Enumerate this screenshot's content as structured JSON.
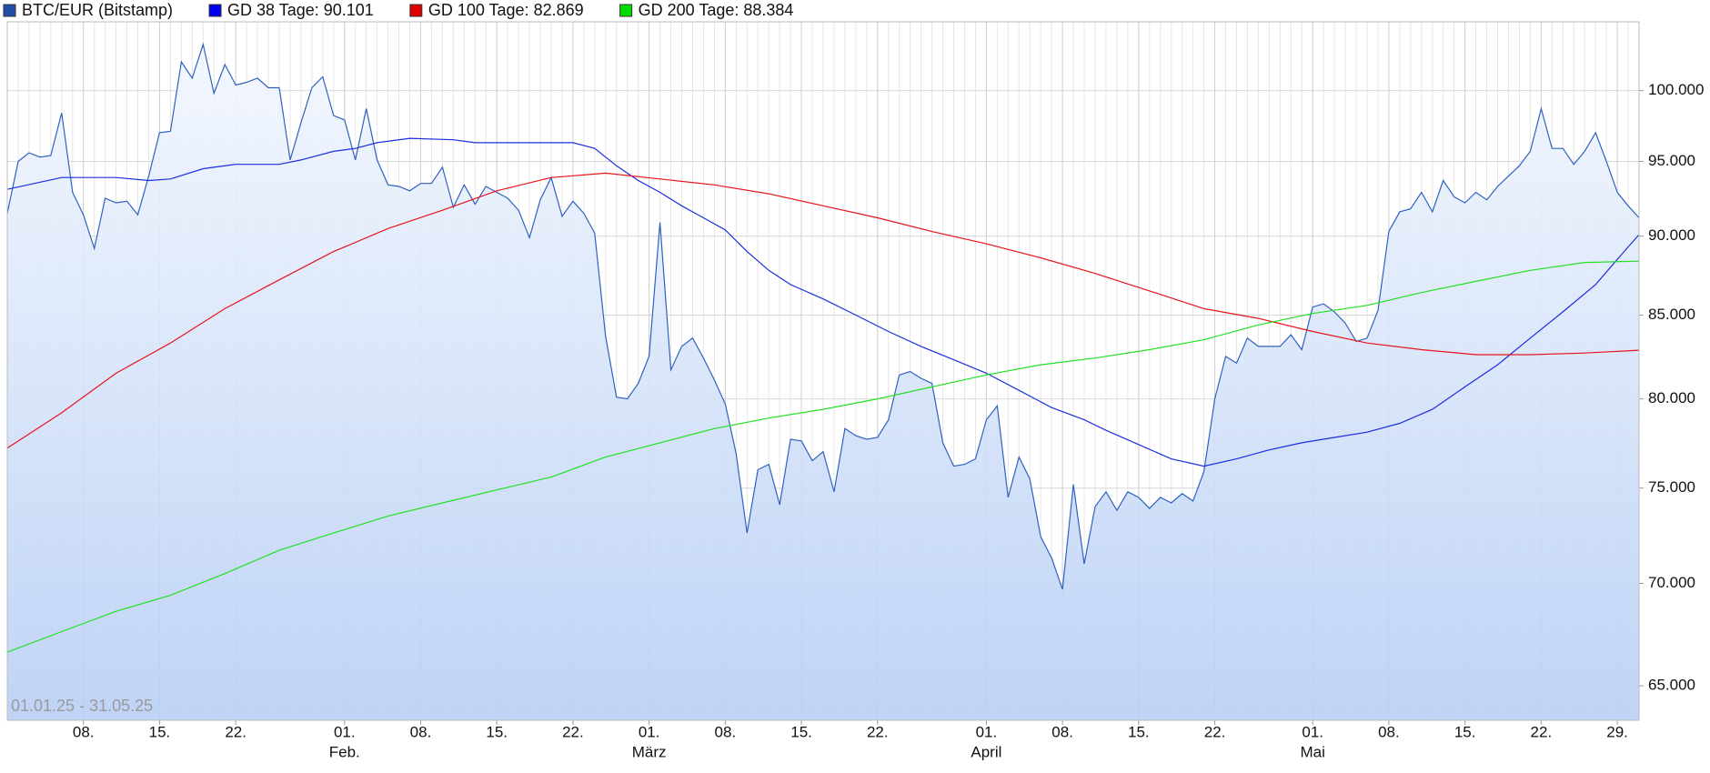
{
  "chart_data": {
    "type": "line",
    "log_scale": true,
    "grid": true,
    "subtitle": "01.01.25 - 31.05.25",
    "xlim": [
      "2025-01-01",
      "2025-05-31"
    ],
    "ylim": [
      63400,
      105100
    ],
    "yticks": [
      {
        "value": 65000,
        "label": "65.000"
      },
      {
        "value": 70000,
        "label": "70.000"
      },
      {
        "value": 75000,
        "label": "75.000"
      },
      {
        "value": 80000,
        "label": "80.000"
      },
      {
        "value": 85000,
        "label": "85.000"
      },
      {
        "value": 90000,
        "label": "90.000"
      },
      {
        "value": 95000,
        "label": "95.000"
      },
      {
        "value": 100000,
        "label": "100.000"
      }
    ],
    "xticks": [
      {
        "value": "2025-01-08",
        "label": "08."
      },
      {
        "value": "2025-01-15",
        "label": "15."
      },
      {
        "value": "2025-01-22",
        "label": "22."
      },
      {
        "value": "2025-02-01",
        "label": "01.",
        "month": "Feb."
      },
      {
        "value": "2025-02-08",
        "label": "08."
      },
      {
        "value": "2025-02-15",
        "label": "15."
      },
      {
        "value": "2025-02-22",
        "label": "22."
      },
      {
        "value": "2025-03-01",
        "label": "01.",
        "month": "März"
      },
      {
        "value": "2025-03-08",
        "label": "08."
      },
      {
        "value": "2025-03-15",
        "label": "15."
      },
      {
        "value": "2025-03-22",
        "label": "22."
      },
      {
        "value": "2025-04-01",
        "label": "01.",
        "month": "April"
      },
      {
        "value": "2025-04-08",
        "label": "08."
      },
      {
        "value": "2025-04-15",
        "label": "15."
      },
      {
        "value": "2025-04-22",
        "label": "22."
      },
      {
        "value": "2025-05-01",
        "label": "01.",
        "month": "Mai"
      },
      {
        "value": "2025-05-08",
        "label": "08."
      },
      {
        "value": "2025-05-15",
        "label": "15."
      },
      {
        "value": "2025-05-22",
        "label": "22."
      },
      {
        "value": "2025-05-29",
        "label": "29."
      }
    ],
    "x": [
      "2025-01-01",
      "2025-01-02",
      "2025-01-03",
      "2025-01-04",
      "2025-01-05",
      "2025-01-06",
      "2025-01-07",
      "2025-01-08",
      "2025-01-09",
      "2025-01-10",
      "2025-01-11",
      "2025-01-12",
      "2025-01-13",
      "2025-01-14",
      "2025-01-15",
      "2025-01-16",
      "2025-01-17",
      "2025-01-18",
      "2025-01-19",
      "2025-01-20",
      "2025-01-21",
      "2025-01-22",
      "2025-01-23",
      "2025-01-24",
      "2025-01-25",
      "2025-01-26",
      "2025-01-27",
      "2025-01-28",
      "2025-01-29",
      "2025-01-30",
      "2025-01-31",
      "2025-02-01",
      "2025-02-02",
      "2025-02-03",
      "2025-02-04",
      "2025-02-05",
      "2025-02-06",
      "2025-02-07",
      "2025-02-08",
      "2025-02-09",
      "2025-02-10",
      "2025-02-11",
      "2025-02-12",
      "2025-02-13",
      "2025-02-14",
      "2025-02-15",
      "2025-02-16",
      "2025-02-17",
      "2025-02-18",
      "2025-02-19",
      "2025-02-20",
      "2025-02-21",
      "2025-02-22",
      "2025-02-23",
      "2025-02-24",
      "2025-02-25",
      "2025-02-26",
      "2025-02-27",
      "2025-02-28",
      "2025-03-01",
      "2025-03-02",
      "2025-03-03",
      "2025-03-04",
      "2025-03-05",
      "2025-03-06",
      "2025-03-07",
      "2025-03-08",
      "2025-03-09",
      "2025-03-10",
      "2025-03-11",
      "2025-03-12",
      "2025-03-13",
      "2025-03-14",
      "2025-03-15",
      "2025-03-16",
      "2025-03-17",
      "2025-03-18",
      "2025-03-19",
      "2025-03-20",
      "2025-03-21",
      "2025-03-22",
      "2025-03-23",
      "2025-03-24",
      "2025-03-25",
      "2025-03-26",
      "2025-03-27",
      "2025-03-28",
      "2025-03-29",
      "2025-03-30",
      "2025-03-31",
      "2025-04-01",
      "2025-04-02",
      "2025-04-03",
      "2025-04-04",
      "2025-04-05",
      "2025-04-06",
      "2025-04-07",
      "2025-04-08",
      "2025-04-09",
      "2025-04-10",
      "2025-04-11",
      "2025-04-12",
      "2025-04-13",
      "2025-04-14",
      "2025-04-15",
      "2025-04-16",
      "2025-04-17",
      "2025-04-18",
      "2025-04-19",
      "2025-04-20",
      "2025-04-21",
      "2025-04-22",
      "2025-04-23",
      "2025-04-24",
      "2025-04-25",
      "2025-04-26",
      "2025-04-27",
      "2025-04-28",
      "2025-04-29",
      "2025-04-30",
      "2025-05-01",
      "2025-05-02",
      "2025-05-03",
      "2025-05-04",
      "2025-05-05",
      "2025-05-06",
      "2025-05-07",
      "2025-05-08",
      "2025-05-09",
      "2025-05-10",
      "2025-05-11",
      "2025-05-12",
      "2025-05-13",
      "2025-05-14",
      "2025-05-15",
      "2025-05-16",
      "2025-05-17",
      "2025-05-18",
      "2025-05-19",
      "2025-05-20",
      "2025-05-21",
      "2025-05-22",
      "2025-05-23",
      "2025-05-24",
      "2025-05-25",
      "2025-05-26",
      "2025-05-27",
      "2025-05-28",
      "2025-05-29",
      "2025-05-30",
      "2025-05-31"
    ],
    "series": [
      {
        "name": "BTC/EUR (Bitstamp)",
        "color": "#2f62c0",
        "legend_color": "#1f4fa8",
        "area": true,
        "values": [
          91500,
          95000,
          95600,
          95300,
          95400,
          98400,
          92900,
          91400,
          89200,
          92500,
          92200,
          92300,
          91400,
          94000,
          97000,
          97100,
          102100,
          100900,
          103400,
          99800,
          101900,
          100400,
          100600,
          100900,
          100200,
          100200,
          95100,
          97700,
          100200,
          101000,
          98200,
          97900,
          95100,
          98700,
          95100,
          93400,
          93300,
          93000,
          93500,
          93500,
          94600,
          91900,
          93400,
          92100,
          93300,
          92900,
          92500,
          91700,
          89900,
          92400,
          93900,
          91300,
          92300,
          91500,
          90200,
          83700,
          80100,
          80000,
          80900,
          82500,
          90900,
          81700,
          83100,
          83600,
          82400,
          81100,
          79700,
          76900,
          72600,
          76000,
          76300,
          74100,
          77700,
          77600,
          76500,
          77000,
          74800,
          78300,
          77900,
          77700,
          77800,
          78800,
          81400,
          81600,
          81200,
          80900,
          77500,
          76200,
          76300,
          76600,
          78800,
          79600,
          74500,
          76700,
          75500,
          72400,
          71300,
          69700,
          75200,
          71000,
          74000,
          74800,
          73800,
          74800,
          74500,
          73900,
          74500,
          74200,
          74700,
          74300,
          75900,
          80000,
          82500,
          82100,
          83600,
          83100,
          83100,
          83100,
          83800,
          82900,
          85500,
          85700,
          85200,
          84500,
          83400,
          83600,
          85300,
          90300,
          91600,
          91800,
          92900,
          91600,
          93700,
          92600,
          92200,
          92900,
          92400,
          93300,
          94000,
          94700,
          95700,
          98700,
          95900,
          95900,
          94800,
          95700,
          97000,
          95000,
          92900,
          92000,
          91200
        ]
      },
      {
        "name": "GD 38 Tage: 90.101",
        "color": "#1c2ee0",
        "legend_color": "#0000ee",
        "x": [
          "2025-01-01",
          "2025-01-06",
          "2025-01-11",
          "2025-01-14",
          "2025-01-16",
          "2025-01-19",
          "2025-01-22",
          "2025-01-26",
          "2025-01-28",
          "2025-01-31",
          "2025-02-02",
          "2025-02-04",
          "2025-02-07",
          "2025-02-11",
          "2025-02-13",
          "2025-02-16",
          "2025-02-19",
          "2025-02-22",
          "2025-02-24",
          "2025-02-26",
          "2025-02-28",
          "2025-03-02",
          "2025-03-04",
          "2025-03-06",
          "2025-03-08",
          "2025-03-10",
          "2025-03-12",
          "2025-03-14",
          "2025-03-17",
          "2025-03-20",
          "2025-03-23",
          "2025-03-26",
          "2025-03-29",
          "2025-04-01",
          "2025-04-04",
          "2025-04-07",
          "2025-04-10",
          "2025-04-12",
          "2025-04-15",
          "2025-04-18",
          "2025-04-21",
          "2025-04-24",
          "2025-04-27",
          "2025-04-30",
          "2025-05-03",
          "2025-05-06",
          "2025-05-09",
          "2025-05-12",
          "2025-05-15",
          "2025-05-18",
          "2025-05-21",
          "2025-05-24",
          "2025-05-27",
          "2025-05-30",
          "2025-05-31"
        ],
        "values": [
          93100,
          93900,
          93900,
          93700,
          93800,
          94500,
          94800,
          94800,
          95100,
          95700,
          95900,
          96300,
          96600,
          96500,
          96300,
          96300,
          96300,
          96300,
          95900,
          94700,
          93700,
          92900,
          92000,
          91200,
          90400,
          89000,
          87800,
          86900,
          86000,
          85000,
          84000,
          83100,
          82300,
          81500,
          80500,
          79500,
          78800,
          78200,
          77400,
          76600,
          76200,
          76600,
          77100,
          77500,
          77800,
          78100,
          78600,
          79400,
          80700,
          82000,
          83600,
          85200,
          86900,
          89300,
          90101
        ]
      },
      {
        "name": "GD 100 Tage: 82.869",
        "color": "#e8141b",
        "legend_color": "#e00000",
        "x": [
          "2025-01-01",
          "2025-01-06",
          "2025-01-11",
          "2025-01-16",
          "2025-01-21",
          "2025-01-26",
          "2025-01-31",
          "2025-02-05",
          "2025-02-10",
          "2025-02-15",
          "2025-02-20",
          "2025-02-25",
          "2025-03-02",
          "2025-03-07",
          "2025-03-12",
          "2025-03-17",
          "2025-03-22",
          "2025-03-27",
          "2025-04-01",
          "2025-04-06",
          "2025-04-11",
          "2025-04-16",
          "2025-04-21",
          "2025-04-26",
          "2025-05-01",
          "2025-05-06",
          "2025-05-11",
          "2025-05-16",
          "2025-05-21",
          "2025-05-26",
          "2025-05-31"
        ],
        "values": [
          77200,
          79200,
          81500,
          83300,
          85400,
          87200,
          89000,
          90500,
          91700,
          93000,
          93900,
          94200,
          93800,
          93400,
          92800,
          92000,
          91200,
          90300,
          89500,
          88600,
          87600,
          86500,
          85400,
          84800,
          84000,
          83300,
          82900,
          82600,
          82600,
          82700,
          82869
        ]
      },
      {
        "name": "GD 200 Tage: 88.384",
        "color": "#22e022",
        "legend_color": "#00dd00",
        "x": [
          "2025-01-01",
          "2025-01-06",
          "2025-01-11",
          "2025-01-16",
          "2025-01-21",
          "2025-01-26",
          "2025-01-31",
          "2025-02-05",
          "2025-02-10",
          "2025-02-15",
          "2025-02-20",
          "2025-02-25",
          "2025-03-02",
          "2025-03-07",
          "2025-03-12",
          "2025-03-17",
          "2025-03-22",
          "2025-03-27",
          "2025-04-01",
          "2025-04-06",
          "2025-04-11",
          "2025-04-16",
          "2025-04-21",
          "2025-04-26",
          "2025-05-01",
          "2025-05-06",
          "2025-05-11",
          "2025-05-16",
          "2025-05-21",
          "2025-05-26",
          "2025-05-31"
        ],
        "values": [
          66600,
          67600,
          68600,
          69400,
          70500,
          71700,
          72600,
          73500,
          74200,
          74900,
          75600,
          76700,
          77500,
          78300,
          78900,
          79400,
          80000,
          80700,
          81400,
          82000,
          82400,
          82900,
          83500,
          84400,
          85100,
          85600,
          86400,
          87100,
          87800,
          88300,
          88384
        ]
      }
    ]
  }
}
